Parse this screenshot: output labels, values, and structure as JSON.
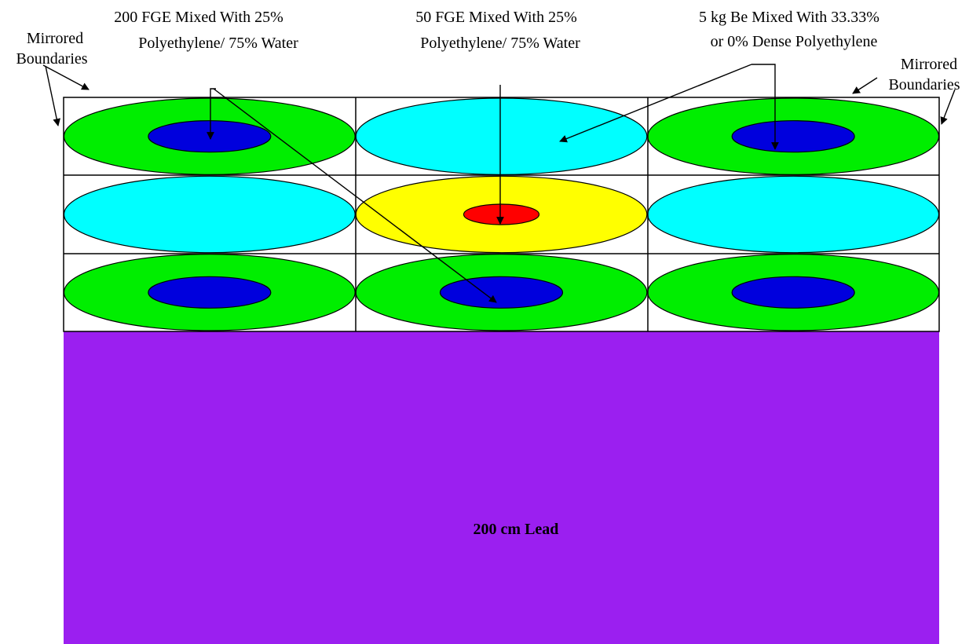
{
  "labels": {
    "fge200_line1": "200 FGE Mixed With 25%",
    "fge200_line2": "Polyethylene/ 75% Water",
    "fge50_line1": "50 FGE Mixed With 25%",
    "fge50_line2": "Polyethylene/ 75% Water",
    "be_line1": "5 kg Be Mixed With 33.33%",
    "be_line2": "or 0% Dense Polyethylene",
    "mirrored_left_line1": "Mirrored",
    "mirrored_left_line2": "Boundaries",
    "mirrored_right_line1": "Mirrored",
    "mirrored_right_line2": "Boundaries",
    "lead": "200 cm Lead"
  },
  "colors": {
    "outer_green": "#00ee00",
    "inner_blue": "#0000dd",
    "be_cyan": "#00ffff",
    "outer_yellow": "#ffff00",
    "inner_red": "#ff0000",
    "lead_purple": "#9b1ff0",
    "grid": "#000000",
    "background": "#ffffff"
  },
  "grid": {
    "rows": [
      [
        "fge200",
        "be",
        "fge200"
      ],
      [
        "be",
        "fge50",
        "be"
      ],
      [
        "fge200",
        "fge200",
        "fge200"
      ]
    ]
  }
}
